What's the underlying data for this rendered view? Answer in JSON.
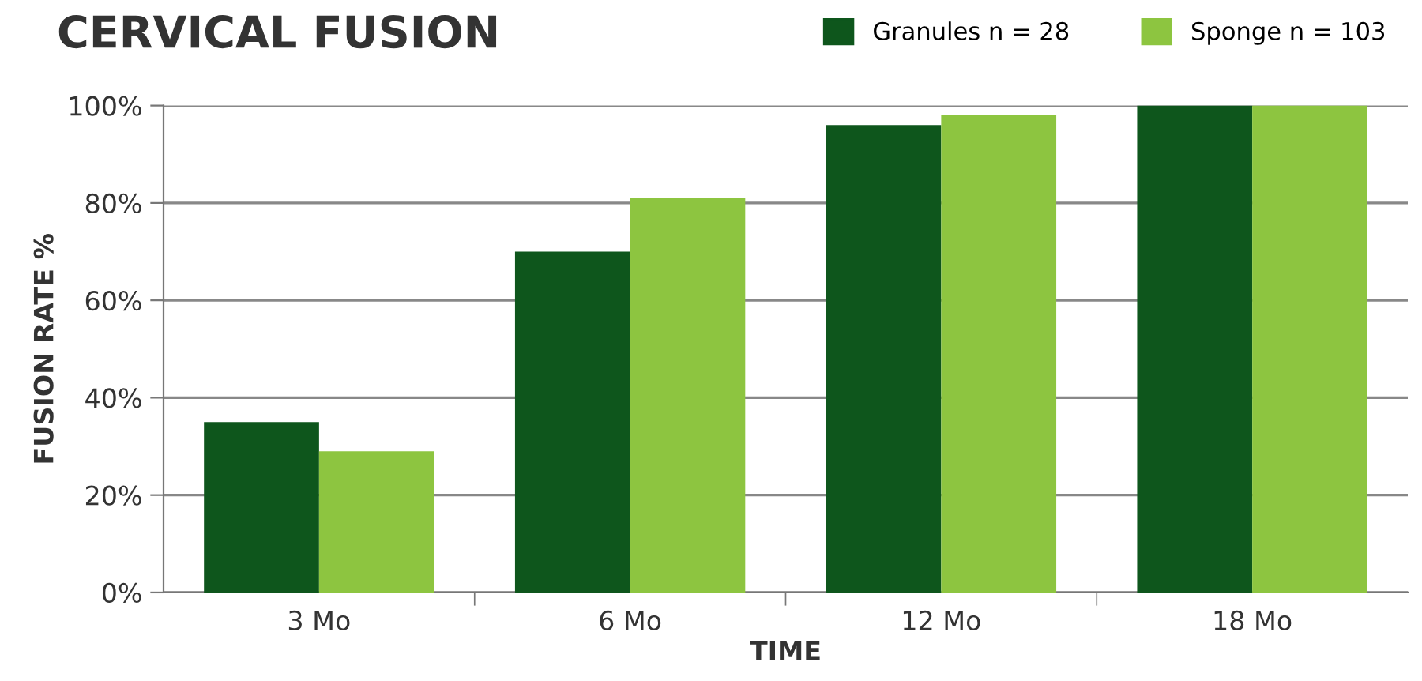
{
  "chart_data": {
    "type": "bar",
    "title": "CERVICAL FUSION",
    "xlabel": "TIME",
    "ylabel": "FUSION RATE %",
    "categories": [
      "3 Mo",
      "6 Mo",
      "12 Mo",
      "18 Mo"
    ],
    "series": [
      {
        "name": "Granules n = 28",
        "color": "#0e561c",
        "values": [
          35,
          70,
          96,
          100
        ]
      },
      {
        "name": "Sponge n = 103",
        "color": "#8dc540",
        "values": [
          29,
          81,
          98,
          100
        ]
      }
    ],
    "ylim": [
      0,
      100
    ],
    "yticks": [
      {
        "value": 0,
        "label": "0%"
      },
      {
        "value": 20,
        "label": "20%"
      },
      {
        "value": 40,
        "label": "40%"
      },
      {
        "value": 60,
        "label": "60%"
      },
      {
        "value": 80,
        "label": "80%"
      },
      {
        "value": 100,
        "label": "100%"
      }
    ],
    "grid": "y",
    "legend": "top right"
  }
}
